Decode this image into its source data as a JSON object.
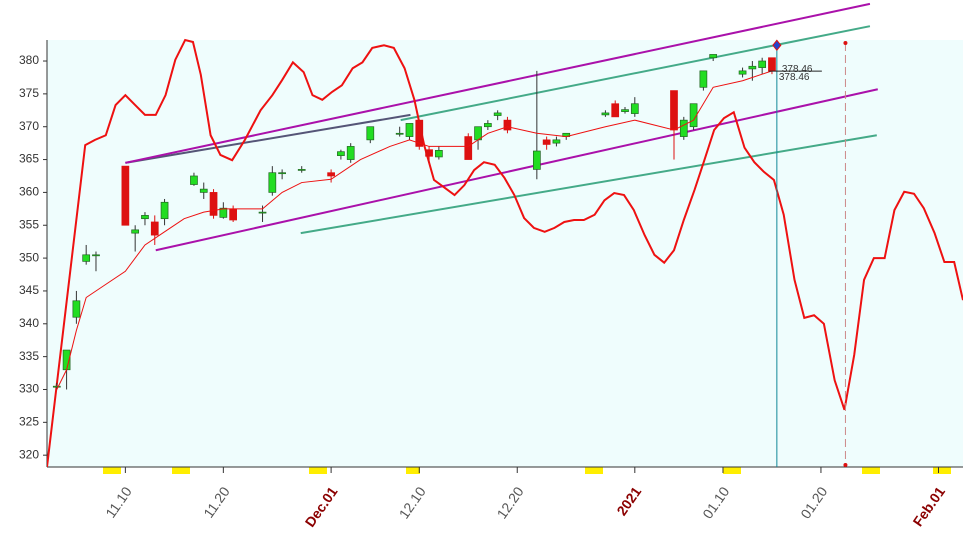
{
  "chart_data": {
    "type": "candlestick",
    "xlim": [
      -8,
      85.5
    ],
    "ylim": [
      318.2,
      383.2
    ],
    "yticks": [
      320,
      325,
      330,
      335,
      340,
      345,
      350,
      355,
      360,
      365,
      370,
      375,
      380
    ],
    "xticks": [
      {
        "value": 0,
        "label": "11.10"
      },
      {
        "value": 10,
        "label": "11.20"
      },
      {
        "value": 21,
        "label": "Dec.01"
      },
      {
        "value": 30,
        "label": "12.10"
      },
      {
        "value": 40,
        "label": "12.20"
      },
      {
        "value": 52,
        "label": "2021"
      },
      {
        "value": 61,
        "label": "01.10"
      },
      {
        "value": 71,
        "label": "01.20"
      },
      {
        "value": 83,
        "label": "Feb.01"
      }
    ],
    "highlight_ticks": [
      "Dec.01",
      "2021",
      "Feb.01"
    ],
    "up_color": "#22dd22",
    "down_color": "#dd1111",
    "background": "#effdfd",
    "candles": {
      "x": [
        -7,
        -6,
        -5,
        -4,
        -3,
        0,
        1,
        2,
        3,
        4,
        7,
        8,
        9,
        10,
        11,
        14,
        15,
        16,
        18,
        21,
        22,
        23,
        25,
        28,
        29,
        30,
        31,
        32,
        35,
        36,
        37,
        38,
        39,
        42,
        43,
        44,
        45,
        49,
        50,
        51,
        52,
        56,
        57,
        58,
        59,
        60,
        63,
        64,
        65,
        66
      ],
      "open": [
        330.5,
        333,
        341,
        349.5,
        350.5,
        364,
        353.8,
        356,
        355.5,
        356,
        361.2,
        360,
        360,
        356.2,
        357.5,
        357,
        360,
        363,
        363.5,
        363,
        365.6,
        365,
        368,
        369,
        368.5,
        371,
        366.5,
        365.4,
        368.5,
        368,
        370,
        371.7,
        371,
        363.5,
        368,
        367.5,
        368.5,
        371.8,
        373.5,
        372.3,
        372,
        375.5,
        368.5,
        370,
        376,
        380.5,
        378,
        378.8,
        379,
        380.5
      ],
      "high": [
        331,
        336,
        345,
        352,
        351,
        364,
        355,
        357,
        356.5,
        359,
        363,
        361.5,
        360.5,
        358.5,
        358,
        358,
        364,
        363.5,
        364,
        363.5,
        366.5,
        367.5,
        370,
        370,
        370.5,
        371,
        367,
        367,
        369,
        370,
        371,
        372.5,
        371.5,
        378.5,
        368.5,
        368.5,
        369,
        372.5,
        374,
        373,
        374.5,
        375.5,
        371.5,
        373.5,
        378.5,
        381,
        379,
        380,
        380.5,
        380.5
      ],
      "low": [
        330,
        330,
        340,
        349,
        348,
        355,
        351,
        355,
        352,
        355,
        361,
        359,
        356,
        356,
        355.5,
        355.5,
        359.5,
        362,
        363,
        361.5,
        365,
        364.5,
        367.5,
        368.5,
        368,
        366.5,
        364.5,
        365,
        365,
        366.5,
        369.5,
        371,
        369,
        362,
        366.5,
        367,
        368,
        371.5,
        371.5,
        372,
        371.5,
        365,
        368,
        369.5,
        375.5,
        380,
        377.5,
        377,
        378,
        378
      ],
      "close": [
        330.5,
        336,
        343.5,
        350.5,
        350.5,
        355,
        354.3,
        356.5,
        353.5,
        358.5,
        362.5,
        360.5,
        356.5,
        357.6,
        355.8,
        357,
        363,
        363,
        363.5,
        362.5,
        366.2,
        367,
        370,
        369,
        370.5,
        367,
        365.5,
        366.4,
        365,
        370,
        370.5,
        372.1,
        369.5,
        366.3,
        367.3,
        368,
        369,
        372.1,
        371.5,
        372.6,
        373.5,
        369.5,
        371,
        373.5,
        378.5,
        381,
        378.5,
        379.2,
        380,
        378.46
      ]
    },
    "ma": {
      "color": "#ee1111",
      "x": [
        -7,
        -6,
        -5,
        -4,
        -2,
        0,
        2,
        4,
        6,
        8,
        10,
        14,
        16,
        18,
        21,
        24,
        27,
        29,
        31,
        35,
        37,
        39,
        42,
        45,
        49,
        52,
        56,
        58,
        60,
        63,
        66
      ],
      "values": [
        330,
        333,
        339,
        344,
        346,
        348,
        352,
        354,
        356,
        357,
        357.5,
        357.5,
        360,
        361.5,
        362,
        365,
        367,
        368,
        367,
        367,
        369,
        370,
        369,
        368.5,
        370,
        371,
        369.5,
        371,
        376,
        377,
        378.5
      ]
    },
    "cycle": {
      "color": "#ee1111",
      "x": [
        -8,
        -4.1,
        -3.1,
        -2,
        -1,
        0,
        1,
        2,
        3.1,
        4.1,
        5.1,
        6.1,
        6.9,
        7.7,
        8.7,
        9.7,
        10.9,
        12.2,
        13.8,
        15,
        16,
        17.1,
        18.2,
        19.1,
        20.1,
        21.1,
        22.1,
        23.2,
        24.2,
        25.2,
        26.4,
        27.4,
        28.5,
        29.5,
        30.5,
        31.5,
        32.6,
        33.6,
        34.6,
        35.6,
        36.6,
        37.7,
        38.7,
        39.7,
        40.7,
        41.7,
        42.8,
        43.8,
        44.8,
        45.8,
        46.8,
        47.9,
        48.9,
        49.9,
        50.9,
        51.9,
        53,
        54,
        55,
        56,
        57,
        58.1,
        59.1,
        60.1,
        61.1,
        62.1,
        63.2,
        64.2,
        65.2,
        66.2,
        67.2,
        68.3,
        69.3,
        70.3,
        71.3,
        72.4,
        73.4,
        74.4,
        75.4,
        76.4,
        77.5,
        78.5,
        79.5,
        80.5,
        81.5,
        82.6,
        83.6,
        84.6,
        85.5
      ],
      "values": [
        318.2,
        367.2,
        368,
        368.7,
        373.3,
        374.8,
        373.3,
        371.8,
        371.8,
        374.8,
        380.2,
        383.2,
        382.9,
        377.9,
        368.7,
        365.7,
        364.9,
        368,
        372.5,
        374.8,
        377.1,
        379.8,
        378.3,
        374.8,
        374.1,
        375.3,
        376.3,
        378.9,
        379.8,
        382,
        382.4,
        382,
        378.9,
        374.1,
        367.2,
        361.9,
        360.7,
        359.6,
        361.1,
        363.4,
        364.6,
        364.2,
        362.2,
        359.6,
        356.1,
        354.6,
        354,
        354.6,
        355.5,
        355.8,
        355.8,
        356.6,
        358.8,
        359.9,
        359.6,
        357.3,
        353.5,
        350.5,
        349.3,
        351.2,
        355.8,
        360.4,
        364.9,
        369.5,
        371.3,
        372.2,
        366.8,
        364.6,
        363.1,
        361.9,
        356.6,
        346.7,
        340.9,
        341.3,
        340,
        331.4,
        326.9,
        335.3,
        346.7,
        350,
        350,
        357.3,
        360.1,
        359.8,
        357.6,
        353.8,
        349.4,
        349.4,
        343.6
      ]
    },
    "trendlines": [
      {
        "color": "#555577",
        "x": [
          0,
          29.1
        ],
        "values": [
          364.5,
          371.8
        ]
      },
      {
        "color": "#aa11aa",
        "x": [
          0,
          76
        ],
        "values": [
          364.5,
          388.7
        ]
      },
      {
        "color": "#aa11aa",
        "x": [
          3.1,
          76.8
        ],
        "values": [
          351.2,
          375.7
        ]
      },
      {
        "color": "#44aa88",
        "x": [
          28.1,
          76
        ],
        "values": [
          371,
          385.3
        ]
      },
      {
        "color": "#44aa88",
        "x": [
          17.9,
          76.7
        ],
        "values": [
          353.8,
          368.7
        ]
      }
    ],
    "cursor": {
      "x": 66.5,
      "marker": 382.4,
      "color": "#118899"
    },
    "projection_x": 73.5,
    "last_price": 378.46
  }
}
